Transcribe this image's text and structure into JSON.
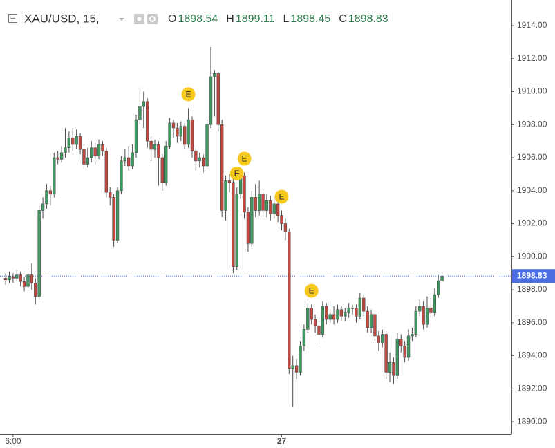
{
  "chart_data": {
    "type": "candlestick",
    "symbol": "XAU/USD, 15,",
    "ohlc_header": [
      {
        "key": "O",
        "value": 1898.54
      },
      {
        "key": "H",
        "value": 1899.11
      },
      {
        "key": "L",
        "value": 1898.45
      },
      {
        "key": "C",
        "value": 1898.83
      }
    ],
    "up_color": "#3d9a60",
    "down_color": "#c4473f",
    "wick_color": "#4a4a4a",
    "open": [
      1898.7,
      1898.6,
      1898.8,
      1898.7,
      1898.9,
      1898.5,
      1898.2,
      1898.9,
      1898.4,
      1897.6,
      1902.8,
      1903.2,
      1904.0,
      1903.8,
      1906.0,
      1905.9,
      1906.3,
      1906.6,
      1907.2,
      1906.8,
      1907.3,
      1906.5,
      1905.6,
      1906.0,
      1906.6,
      1906.1,
      1906.8,
      1906.4,
      1903.9,
      1903.6,
      1901.0,
      1904.0,
      1905.8,
      1906.0,
      1905.5,
      1906.3,
      1908.3,
      1909.1,
      1909.4,
      1907.0,
      1906.5,
      1906.8,
      1906.0,
      1904.5,
      1906.7,
      1908.1,
      1907.8,
      1907.3,
      1907.9,
      1906.8,
      1908.3,
      1906.4,
      1905.8,
      1906.0,
      1905.5,
      1908.0,
      1910.9,
      1911.1,
      1908.0,
      1902.8,
      1904.6,
      1904.5,
      1899.4,
      1903.8,
      1904.9,
      1902.7,
      1900.8,
      1903.6,
      1902.8,
      1903.8,
      1902.8,
      1903.4,
      1902.6,
      1903.2,
      1902.5,
      1902.0,
      1901.5,
      1893.2,
      1893.4,
      1893.0,
      1894.6,
      1895.6,
      1896.9,
      1896.2,
      1895.8,
      1895.3,
      1897.0,
      1896.2,
      1896.5,
      1896.2,
      1896.8,
      1896.4,
      1896.6,
      1896.9,
      1896.9,
      1896.4,
      1897.5,
      1896.7,
      1895.7,
      1896.5,
      1895.2,
      1894.8,
      1895.3,
      1893.0,
      1893.6,
      1892.8,
      1895.0,
      1894.6,
      1893.9,
      1895.2,
      1895.3,
      1896.7,
      1897.0,
      1895.9,
      1896.9,
      1896.6,
      1897.7,
      1898.54
    ],
    "high": [
      1899.0,
      1899.1,
      1899.0,
      1899.2,
      1899.1,
      1898.8,
      1899.3,
      1899.6,
      1898.7,
      1903.1,
      1903.6,
      1904.4,
      1904.3,
      1906.3,
      1906.4,
      1906.7,
      1907.8,
      1907.6,
      1907.8,
      1907.7,
      1907.5,
      1906.8,
      1906.6,
      1907.0,
      1906.9,
      1907.1,
      1907.0,
      1906.6,
      1904.2,
      1903.8,
      1904.2,
      1906.1,
      1906.5,
      1906.7,
      1906.8,
      1908.6,
      1910.2,
      1910.0,
      1909.6,
      1907.3,
      1907.1,
      1907.0,
      1906.2,
      1907.0,
      1908.4,
      1908.3,
      1908.1,
      1908.2,
      1908.1,
      1909.0,
      1908.5,
      1906.6,
      1906.3,
      1906.2,
      1908.3,
      1912.7,
      1911.3,
      1911.2,
      1908.3,
      1904.9,
      1905.0,
      1904.8,
      1904.2,
      1905.2,
      1905.1,
      1903.0,
      1904.0,
      1904.4,
      1904.6,
      1904.1,
      1903.8,
      1903.7,
      1903.6,
      1903.5,
      1902.8,
      1902.3,
      1901.7,
      1894.0,
      1893.8,
      1894.9,
      1895.9,
      1897.2,
      1897.1,
      1896.5,
      1896.1,
      1897.3,
      1897.2,
      1896.8,
      1897.0,
      1897.1,
      1897.0,
      1896.9,
      1897.2,
      1897.1,
      1897.1,
      1897.8,
      1897.7,
      1897.0,
      1896.8,
      1896.7,
      1895.5,
      1895.6,
      1895.5,
      1894.2,
      1893.9,
      1895.4,
      1895.3,
      1894.9,
      1895.6,
      1895.7,
      1897.0,
      1897.4,
      1897.3,
      1897.6,
      1897.5,
      1898.1,
      1898.9,
      1899.11
    ],
    "low": [
      1898.3,
      1898.4,
      1898.4,
      1898.5,
      1898.2,
      1897.9,
      1897.9,
      1898.0,
      1897.1,
      1897.4,
      1902.3,
      1902.9,
      1903.1,
      1903.6,
      1905.6,
      1905.7,
      1906.0,
      1906.3,
      1906.4,
      1906.5,
      1906.2,
      1905.3,
      1905.4,
      1905.7,
      1905.6,
      1905.9,
      1906.1,
      1903.6,
      1903.1,
      1900.6,
      1900.8,
      1903.8,
      1905.5,
      1905.2,
      1905.3,
      1906.0,
      1908.0,
      1907.8,
      1906.6,
      1905.8,
      1906.0,
      1904.3,
      1904.0,
      1904.3,
      1906.5,
      1907.2,
      1906.9,
      1907.0,
      1906.5,
      1906.6,
      1906.0,
      1905.2,
      1905.4,
      1905.1,
      1905.3,
      1907.8,
      1908.5,
      1907.6,
      1902.4,
      1902.2,
      1903.9,
      1899.0,
      1899.2,
      1903.5,
      1902.3,
      1900.3,
      1900.6,
      1902.4,
      1902.5,
      1902.4,
      1902.4,
      1902.2,
      1902.3,
      1902.1,
      1901.6,
      1901.0,
      1892.9,
      1890.9,
      1892.6,
      1892.8,
      1894.3,
      1895.4,
      1895.9,
      1895.4,
      1894.7,
      1895.1,
      1895.9,
      1896.0,
      1895.9,
      1896.0,
      1896.1,
      1896.1,
      1896.3,
      1896.5,
      1896.0,
      1896.2,
      1896.4,
      1895.4,
      1895.4,
      1894.9,
      1894.3,
      1894.5,
      1892.6,
      1892.4,
      1892.3,
      1892.6,
      1894.2,
      1893.6,
      1893.7,
      1894.9,
      1895.1,
      1896.4,
      1895.6,
      1895.7,
      1896.3,
      1896.4,
      1897.5,
      1898.45
    ],
    "close": [
      1898.6,
      1898.8,
      1898.7,
      1898.9,
      1898.5,
      1898.2,
      1898.9,
      1898.4,
      1897.6,
      1902.8,
      1903.2,
      1904.0,
      1903.8,
      1906.0,
      1905.9,
      1906.3,
      1906.6,
      1907.2,
      1906.8,
      1907.3,
      1906.5,
      1905.6,
      1906.0,
      1906.6,
      1906.1,
      1906.8,
      1906.4,
      1903.9,
      1903.6,
      1901.0,
      1904.0,
      1905.8,
      1906.0,
      1905.5,
      1906.3,
      1908.3,
      1909.1,
      1909.4,
      1907.0,
      1906.5,
      1906.8,
      1906.0,
      1904.5,
      1906.7,
      1908.1,
      1907.8,
      1907.3,
      1907.9,
      1906.8,
      1908.3,
      1906.4,
      1905.8,
      1906.0,
      1905.5,
      1908.0,
      1910.9,
      1911.1,
      1908.0,
      1902.8,
      1904.6,
      1904.5,
      1899.4,
      1903.8,
      1904.9,
      1902.7,
      1900.8,
      1903.6,
      1902.8,
      1903.8,
      1902.8,
      1903.4,
      1902.6,
      1903.2,
      1902.5,
      1902.0,
      1901.5,
      1893.2,
      1893.4,
      1893.0,
      1894.6,
      1895.6,
      1896.9,
      1896.2,
      1895.8,
      1895.3,
      1897.0,
      1896.2,
      1896.5,
      1896.2,
      1896.8,
      1896.4,
      1896.6,
      1896.9,
      1896.9,
      1896.4,
      1897.5,
      1896.7,
      1895.7,
      1896.5,
      1895.2,
      1894.8,
      1895.3,
      1893.0,
      1893.6,
      1892.8,
      1895.0,
      1894.6,
      1893.9,
      1895.2,
      1895.3,
      1896.7,
      1897.0,
      1895.9,
      1896.9,
      1896.6,
      1897.7,
      1898.54,
      1898.83
    ],
    "xlim": [
      -1.5,
      135.6
    ],
    "xticks": [
      {
        "value": 2,
        "label": "6:00"
      },
      {
        "value": 74,
        "label": "27"
      }
    ],
    "ylim": [
      1889.25,
      1915.55
    ],
    "yticks": [
      {
        "value": 1890,
        "label": "1890.00"
      },
      {
        "value": 1892,
        "label": "1892.00"
      },
      {
        "value": 1894,
        "label": "1894.00"
      },
      {
        "value": 1896,
        "label": "1896.00"
      },
      {
        "value": 1898,
        "label": "1898.00"
      },
      {
        "value": 1900,
        "label": "1900.00"
      },
      {
        "value": 1902,
        "label": "1902.00"
      },
      {
        "value": 1904,
        "label": "1904.00"
      },
      {
        "value": 1906,
        "label": "1906.00"
      },
      {
        "value": 1908,
        "label": "1908.00"
      },
      {
        "value": 1910,
        "label": "1910.00"
      },
      {
        "value": 1912,
        "label": "1912.00"
      },
      {
        "value": 1914,
        "label": "1914.00"
      }
    ],
    "price_line": 1898.83,
    "price_line_color": "#4b6fe0",
    "events": [
      {
        "x": 49,
        "label": "E"
      },
      {
        "x": 62,
        "label": "E"
      },
      {
        "x": 64,
        "label": "E"
      },
      {
        "x": 74,
        "label": "E"
      },
      {
        "x": 82,
        "label": "E"
      }
    ]
  }
}
